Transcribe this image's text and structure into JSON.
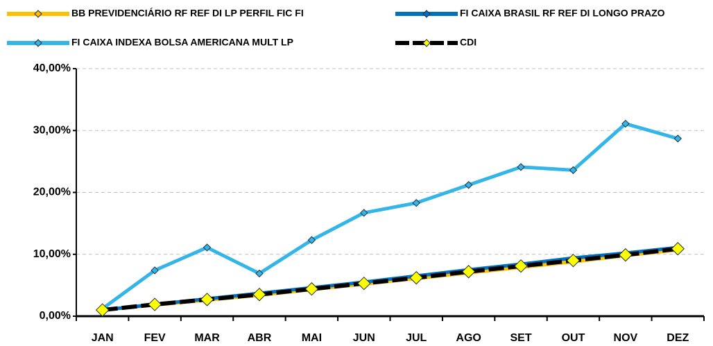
{
  "chart_data": {
    "type": "line",
    "categories": [
      "JAN",
      "FEV",
      "MAR",
      "ABR",
      "MAI",
      "JUN",
      "JUL",
      "AGO",
      "SET",
      "OUT",
      "NOV",
      "DEZ"
    ],
    "series": [
      {
        "name": "BB PREVIDENCIÁRIO RF REF DI LP PERFIL FIC FI",
        "color": "#FFC000",
        "marker_color": "#FFC000",
        "values": [
          1.0,
          1.8,
          2.6,
          3.4,
          4.3,
          5.2,
          6.1,
          7.0,
          7.9,
          8.8,
          9.8,
          10.7
        ]
      },
      {
        "name": "FI CAIXA BRASIL RF REF DI LONGO PRAZO",
        "color": "#0070C0",
        "marker_color": "#0070C0",
        "values": [
          1.0,
          1.9,
          2.8,
          3.7,
          4.6,
          5.5,
          6.5,
          7.5,
          8.4,
          9.4,
          10.2,
          11.1
        ]
      },
      {
        "name": "FI CAIXA INDEXA BOLSA AMERICANA MULT LP",
        "color": "#33B5E8",
        "marker_color": "#33B5E8",
        "values": [
          1.2,
          7.4,
          11.1,
          6.9,
          12.3,
          16.7,
          18.3,
          21.2,
          24.1,
          23.6,
          31.1,
          28.7
        ]
      },
      {
        "name": "CDI",
        "color": "#000000",
        "marker_color": "#FFFF00",
        "dashed": true,
        "values": [
          1.0,
          1.9,
          2.7,
          3.5,
          4.4,
          5.3,
          6.2,
          7.2,
          8.1,
          9.0,
          9.9,
          10.9
        ]
      }
    ],
    "ylim": [
      0,
      40
    ],
    "yticks": [
      {
        "value": 0,
        "label": "0,00%"
      },
      {
        "value": 10,
        "label": "10,00%"
      },
      {
        "value": 20,
        "label": "20,00%"
      },
      {
        "value": 30,
        "label": "30,00%"
      },
      {
        "value": 40,
        "label": "40,00%"
      }
    ],
    "grid": true,
    "legend": "top"
  }
}
